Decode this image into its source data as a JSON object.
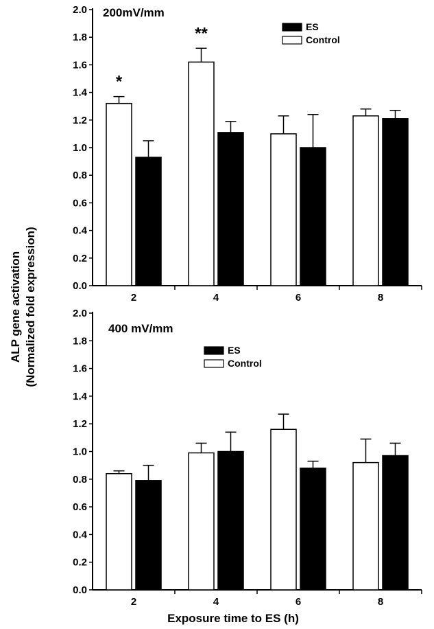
{
  "y_axis_title": [
    "ALP gene activation",
    "(Normalized fold expression)"
  ],
  "x_axis_title": "Exposure time to ES (h)",
  "chart_data": [
    {
      "type": "bar",
      "title": "200mV/mm",
      "categories": [
        "2",
        "4",
        "6",
        "8"
      ],
      "ylim": [
        0,
        2.0
      ],
      "yticks": [
        "0.0",
        "0.2",
        "0.4",
        "0.6",
        "0.8",
        "1.0",
        "1.2",
        "1.4",
        "1.6",
        "1.8",
        "2.0"
      ],
      "series": [
        {
          "name": "Control",
          "color": "#ffffff",
          "values": [
            1.32,
            1.62,
            1.1,
            1.23
          ],
          "errors": [
            0.05,
            0.1,
            0.13,
            0.05
          ]
        },
        {
          "name": "ES",
          "color": "#000000",
          "values": [
            0.93,
            1.11,
            1.0,
            1.21
          ],
          "errors": [
            0.12,
            0.08,
            0.24,
            0.06
          ]
        }
      ],
      "legend": {
        "position": "top-right",
        "order": [
          "ES",
          "Control"
        ]
      },
      "annotations": [
        {
          "text": "*",
          "category": "2"
        },
        {
          "text": "**",
          "category": "4"
        }
      ],
      "xlabel": "",
      "grid": false
    },
    {
      "type": "bar",
      "title": "400 mV/mm",
      "categories": [
        "2",
        "4",
        "6",
        "8"
      ],
      "ylim": [
        0,
        2.0
      ],
      "yticks": [
        "0.0",
        "0.2",
        "0.4",
        "0.6",
        "0.8",
        "1.0",
        "1.2",
        "1.4",
        "1.6",
        "1.8",
        "2.0"
      ],
      "series": [
        {
          "name": "Control",
          "color": "#ffffff",
          "values": [
            0.84,
            0.99,
            1.16,
            0.92
          ],
          "errors": [
            0.02,
            0.07,
            0.11,
            0.17
          ]
        },
        {
          "name": "ES",
          "color": "#000000",
          "values": [
            0.79,
            1.0,
            0.88,
            0.97
          ],
          "errors": [
            0.11,
            0.14,
            0.05,
            0.09
          ]
        }
      ],
      "legend": {
        "position": "top-center",
        "order": [
          "ES",
          "Control"
        ]
      },
      "annotations": [],
      "xlabel": "Exposure time to ES (h)",
      "grid": false
    }
  ]
}
